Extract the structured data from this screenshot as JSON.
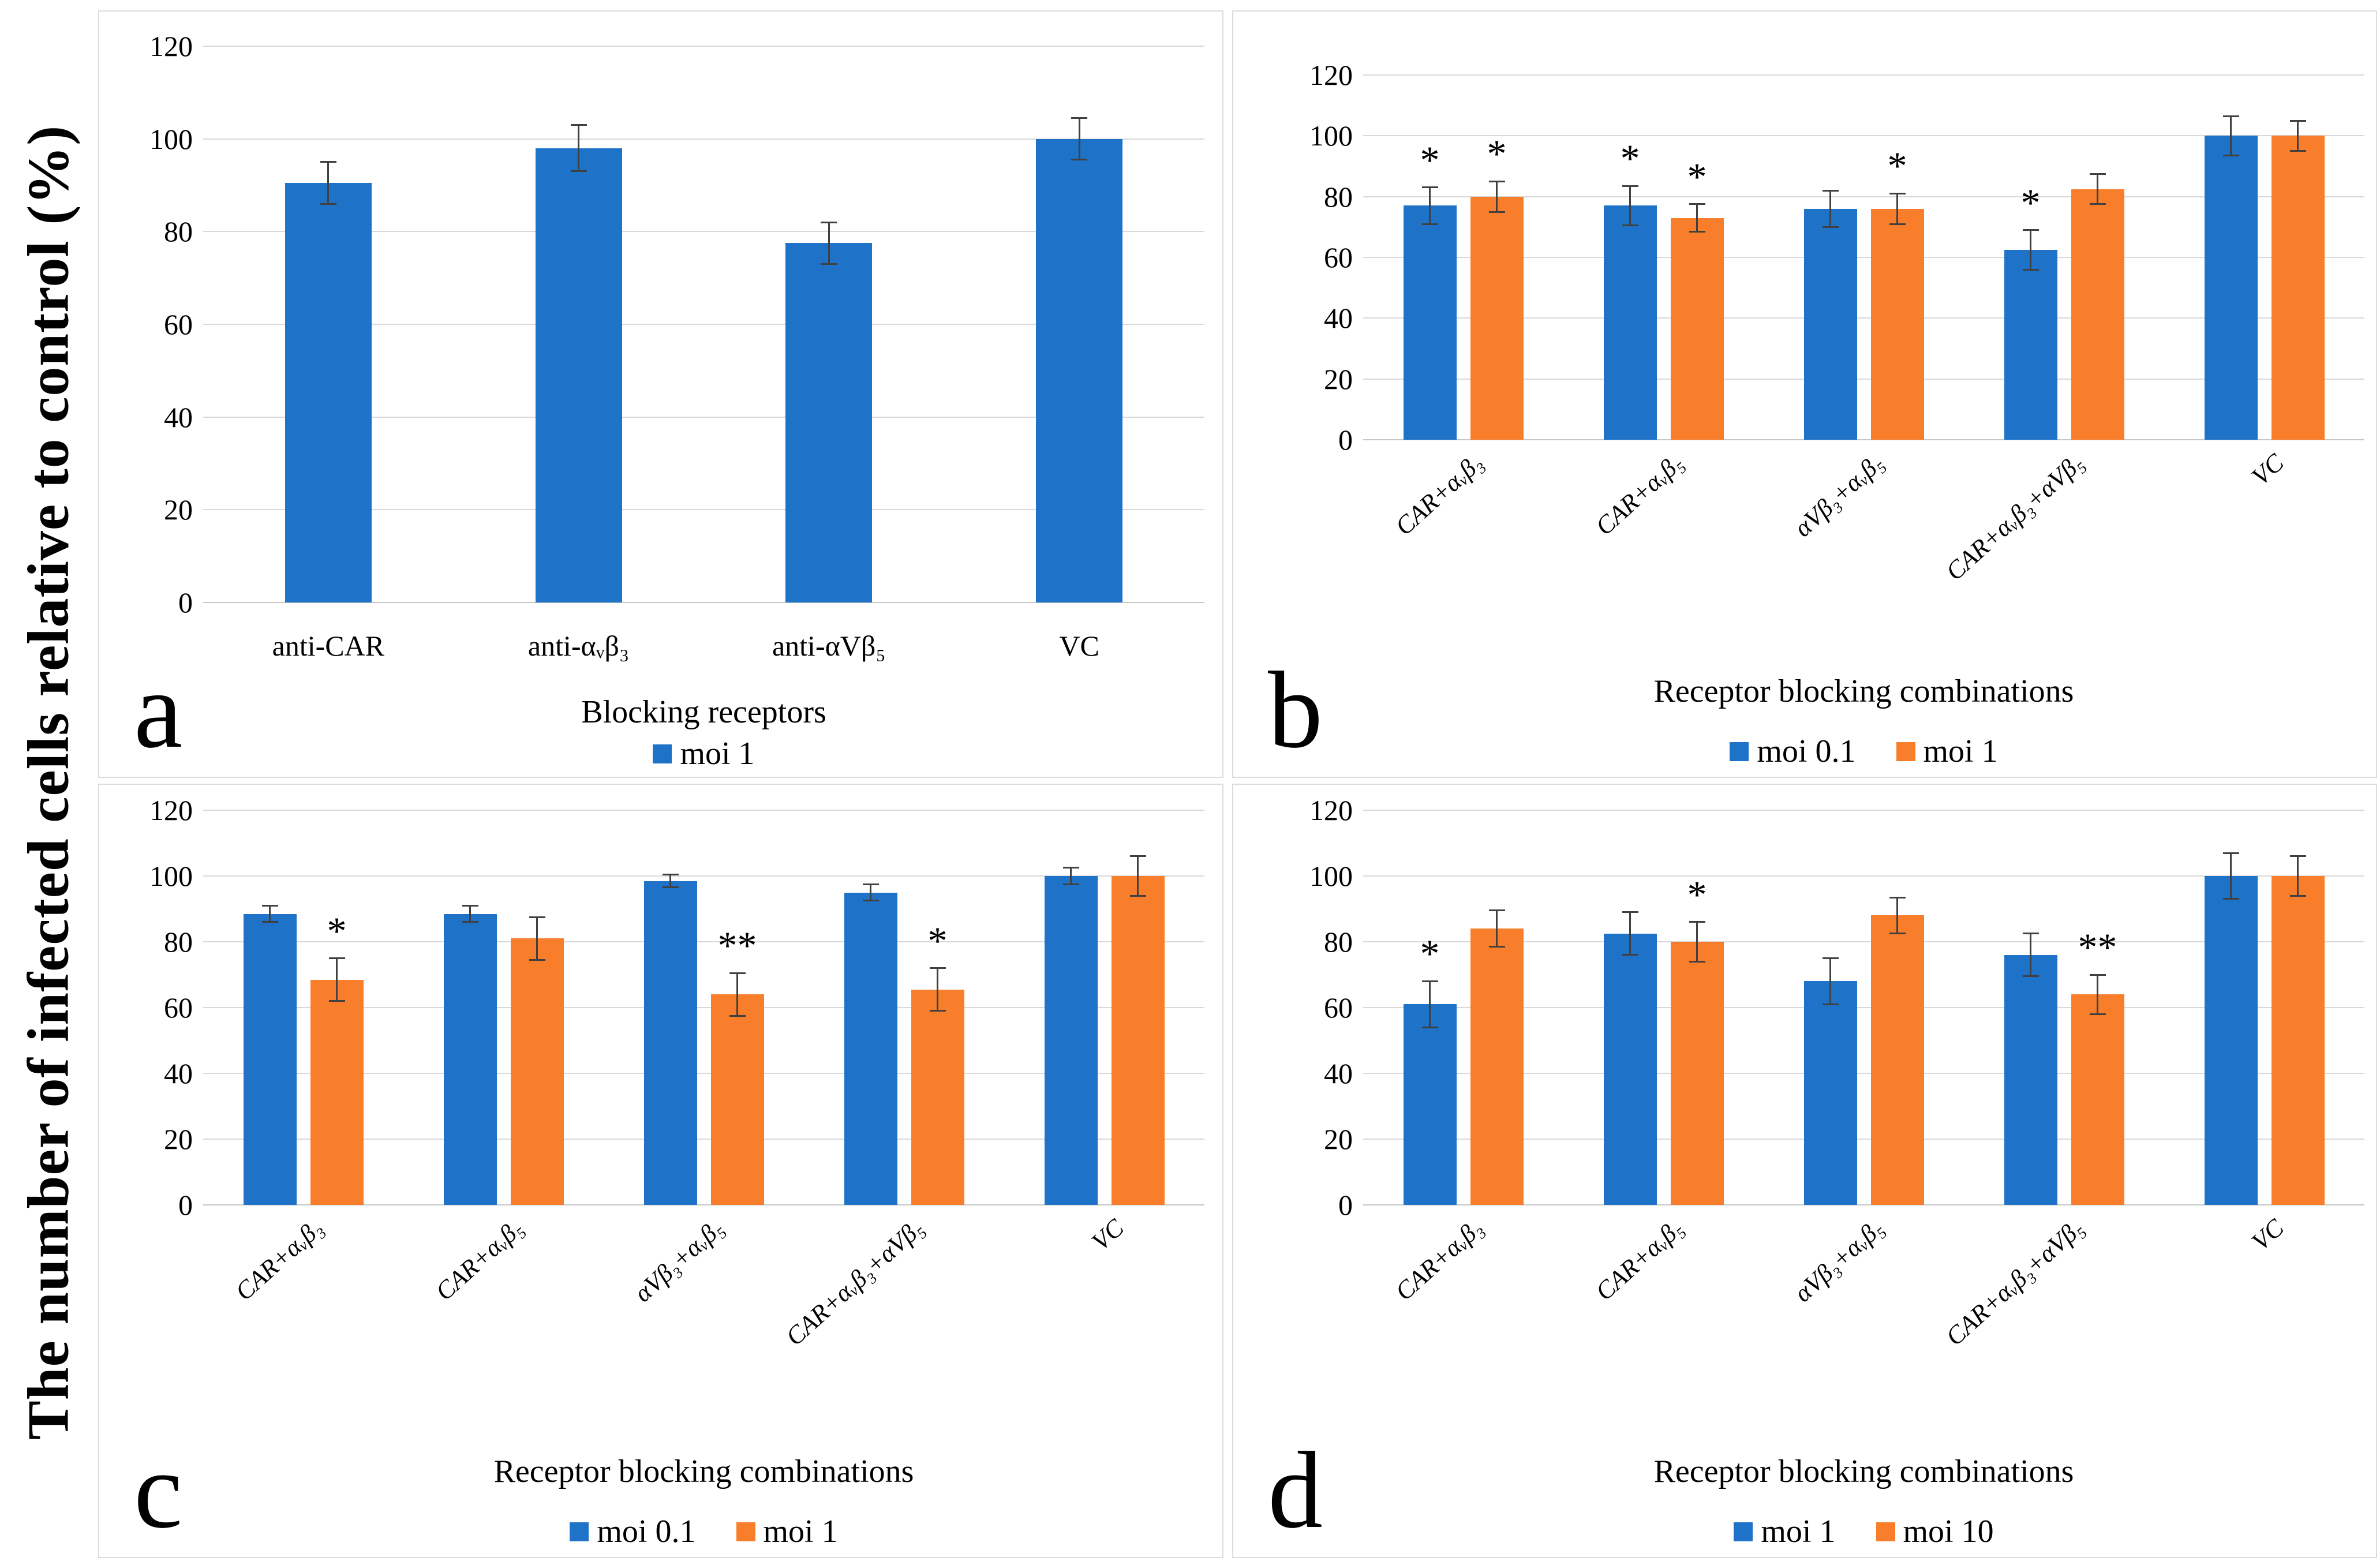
{
  "figure": {
    "y_axis_label": "The number of infected cells relative to control (%)",
    "background_color": "#FFFFFF",
    "grid_color": "#D9D9D9",
    "error_bar_color": "#404040",
    "series_colors": {
      "blue": "#1E73C8",
      "orange": "#F97E2B"
    }
  },
  "chart_data": [
    {
      "id": "a",
      "panel_letter": "a",
      "type": "bar",
      "xlabel": "Blocking receptors",
      "ylabel": "The number of infected cells relative to control (%)",
      "ylim": [
        0,
        120
      ],
      "yticks": [
        0,
        20,
        40,
        60,
        80,
        100,
        120
      ],
      "grid": true,
      "legend_position": "bottom",
      "categories": [
        "anti-CAR",
        "anti-αᵥβ₃",
        "anti-αVβ₅",
        "VC"
      ],
      "series": [
        {
          "name": "moi 1",
          "color": "#1E73C8",
          "values": [
            90.5,
            98,
            77.5,
            100
          ],
          "errors": [
            4.5,
            5,
            4.5,
            4.5
          ],
          "sig": [
            "",
            "",
            "",
            ""
          ]
        }
      ]
    },
    {
      "id": "b",
      "panel_letter": "b",
      "type": "bar",
      "xlabel": "Receptor blocking combinations",
      "ylim": [
        0,
        120
      ],
      "yticks": [
        0,
        20,
        40,
        60,
        80,
        100,
        120
      ],
      "grid": true,
      "legend_position": "bottom",
      "categories": [
        "CAR+αᵥβ₃",
        "CAR+αᵥβ₅",
        "αVβ₃+αᵥβ₅",
        "CAR+αᵥβ₃+αVβ₅",
        "VC"
      ],
      "series": [
        {
          "name": "moi 0.1",
          "color": "#1E73C8",
          "values": [
            77,
            77,
            76,
            62.5,
            100
          ],
          "errors": [
            6,
            6.5,
            6,
            6.5,
            6.5
          ],
          "sig": [
            "*",
            "*",
            "",
            "*",
            ""
          ]
        },
        {
          "name": "moi 1",
          "color": "#F97E2B",
          "values": [
            80,
            73,
            76,
            82.5,
            100
          ],
          "errors": [
            5,
            4.5,
            5,
            5,
            5
          ],
          "sig": [
            "*",
            "*",
            "*",
            "",
            ""
          ]
        }
      ]
    },
    {
      "id": "c",
      "panel_letter": "c",
      "type": "bar",
      "xlabel": "Receptor blocking combinations",
      "ylim": [
        0,
        120
      ],
      "yticks": [
        0,
        20,
        40,
        60,
        80,
        100,
        120
      ],
      "grid": true,
      "legend_position": "bottom",
      "categories": [
        "CAR+αᵥβ₃",
        "CAR+αᵥβ₅",
        "αVβ₃+αᵥβ₅",
        "CAR+αᵥβ₃+αVβ₅",
        "VC"
      ],
      "series": [
        {
          "name": "moi 0.1",
          "color": "#1E73C8",
          "values": [
            88.5,
            88.5,
            98.5,
            95,
            100
          ],
          "errors": [
            2.5,
            2.5,
            2,
            2.5,
            2.5
          ],
          "sig": [
            "",
            "",
            "",
            "",
            ""
          ]
        },
        {
          "name": "moi 1",
          "color": "#F97E2B",
          "values": [
            68.5,
            81,
            64,
            65.5,
            100
          ],
          "errors": [
            6.5,
            6.5,
            6.5,
            6.5,
            6
          ],
          "sig": [
            "*",
            "",
            "**",
            "*",
            ""
          ]
        }
      ]
    },
    {
      "id": "d",
      "panel_letter": "d",
      "type": "bar",
      "xlabel": "Receptor blocking combinations",
      "ylim": [
        0,
        120
      ],
      "yticks": [
        0,
        20,
        40,
        60,
        80,
        100,
        120
      ],
      "grid": true,
      "legend_position": "bottom",
      "categories": [
        "CAR+αᵥβ₃",
        "CAR+αᵥβ₅",
        "αVβ₃+αᵥβ₅",
        "CAR+αᵥβ₃+αVβ₅",
        "VC"
      ],
      "series": [
        {
          "name": "moi 1",
          "color": "#1E73C8",
          "values": [
            61,
            82.5,
            68,
            76,
            100
          ],
          "errors": [
            7,
            6.5,
            7,
            6.5,
            7
          ],
          "sig": [
            "*",
            "",
            "",
            "",
            ""
          ]
        },
        {
          "name": "moi 10",
          "color": "#F97E2B",
          "values": [
            84,
            80,
            88,
            64,
            100
          ],
          "errors": [
            5.5,
            6,
            5.5,
            6,
            6
          ],
          "sig": [
            "",
            "*",
            "",
            "**",
            ""
          ]
        }
      ]
    }
  ]
}
